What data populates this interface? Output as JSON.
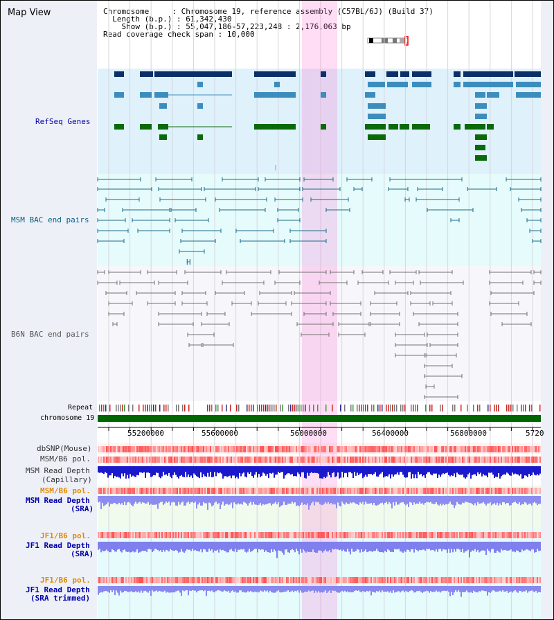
{
  "title": "Map View",
  "info": {
    "chromosome_label": "Chromosome",
    "chromosome_value": "Chromosome 19, reference assembly (C57BL/6J) (Build 37)",
    "length_label": "Length (b.p.)",
    "length_value": "61,342,430",
    "show_label": "Show (b.p.)",
    "show_value": "55,047,186-57,223,248 : 2,176,063 bp",
    "coverage_label": "Read coverage check span",
    "coverage_value": "10,000"
  },
  "tracks": {
    "refseq": "RefSeq Genes",
    "msm_bac": "MSM BAC end pairs",
    "b6n_bac": "B6N BAC end pairs",
    "repeat": "Repeat",
    "chromosome": "chromosome 19",
    "dbsnp": "dbSNP(Mouse)",
    "msm_b6_pol_1": "MSM/B6 pol.",
    "msm_read_depth_cap_1": "MSM Read Depth",
    "msm_read_depth_cap_2": "(Capillary)",
    "msm_b6_pol_2": "MSM/B6 pol.",
    "msm_read_depth_sra_1": "MSM Read Depth",
    "msm_read_depth_sra_2": "(SRA)",
    "jf1_b6_pol_1": "JF1/B6 pol.",
    "jf1_read_depth_sra_1": "JF1 Read Depth",
    "jf1_read_depth_sra_2": "(SRA)",
    "jf1_b6_pol_2": "JF1/B6 pol.",
    "jf1_read_depth_trim_1": "JF1 Read Depth",
    "jf1_read_depth_trim_2": "(SRA trimmed)"
  },
  "axis": {
    "ticks": [
      "55200000",
      "55600000",
      "56000000",
      "56400000",
      "56800000",
      "5720"
    ]
  },
  "colors": {
    "refseq_label": "#0000aa",
    "msm_label": "#006080",
    "b6n_label": "#555555",
    "orange_label": "#e08a00",
    "blue_label": "#0000aa",
    "highlight": "#ff66cc",
    "chromosome_bar": "#006600"
  }
}
